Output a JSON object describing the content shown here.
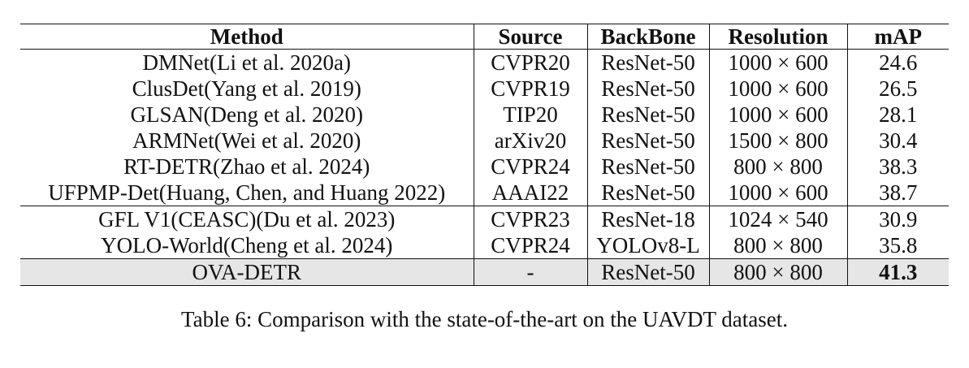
{
  "table": {
    "headers": [
      "Method",
      "Source",
      "BackBone",
      "Resolution",
      "mAP"
    ],
    "rows": [
      [
        "DMNet(Li et al. 2020a)",
        "CVPR20",
        "ResNet-50",
        "1000 × 600",
        "24.6"
      ],
      [
        "ClusDet(Yang et al. 2019)",
        "CVPR19",
        "ResNet-50",
        "1000 × 600",
        "26.5"
      ],
      [
        "GLSAN(Deng et al. 2020)",
        "TIP20",
        "ResNet-50",
        "1000 × 600",
        "28.1"
      ],
      [
        "ARMNet(Wei et al. 2020)",
        "arXiv20",
        "ResNet-50",
        "1500 × 800",
        "30.4"
      ],
      [
        "RT-DETR(Zhao et al. 2024)",
        "CVPR24",
        "ResNet-50",
        "800 × 800",
        "38.3"
      ],
      [
        "UFPMP-Det(Huang, Chen, and Huang 2022)",
        "AAAI22",
        "ResNet-50",
        "1000 × 600",
        "38.7"
      ],
      [
        "GFL V1(CEASC)(Du et al. 2023)",
        "CVPR23",
        "ResNet-18",
        "1024 × 540",
        "30.9"
      ],
      [
        "YOLO-World(Cheng et al. 2024)",
        "CVPR24",
        "YOLOv8-L",
        "800 × 800",
        "35.8"
      ],
      [
        "OVA-DETR",
        "-",
        "ResNet-50",
        "800 × 800",
        "41.3"
      ]
    ]
  },
  "caption": "Table 6: Comparison with the state-of-the-art on the UAVDT dataset.",
  "colors": {
    "highlight_row": "#e6e6e6",
    "rule": "#111111"
  }
}
